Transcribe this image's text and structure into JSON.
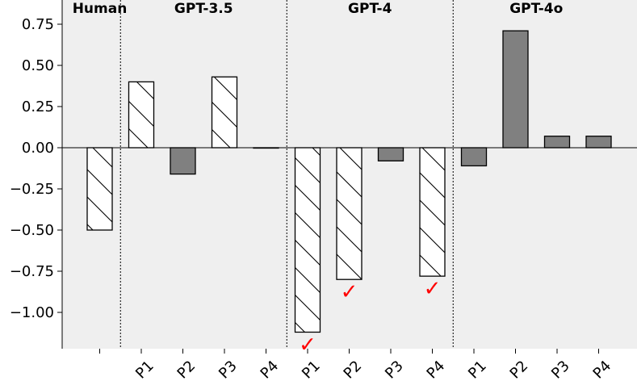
{
  "chart_data": {
    "type": "bar",
    "title": "",
    "xlabel": "",
    "ylabel": "",
    "ylim": [
      -1.2,
      0.8
    ],
    "yticks": [
      0.75,
      0.5,
      0.25,
      0.0,
      -0.25,
      -0.5,
      -0.75,
      -1.0
    ],
    "ytick_labels": [
      "0.75",
      "0.50",
      "0.25",
      "0.00",
      "−0.25",
      "−0.50",
      "−0.75",
      "−1.00"
    ],
    "grid": false,
    "background": "#efefef",
    "groups": [
      {
        "name": "Human",
        "bars": [
          {
            "label": "",
            "value": -0.5,
            "style": "hatched"
          }
        ]
      },
      {
        "name": "GPT-3.5",
        "bars": [
          {
            "label": "P1",
            "value": 0.4,
            "style": "hatched"
          },
          {
            "label": "P2",
            "value": -0.16,
            "style": "solid"
          },
          {
            "label": "P3",
            "value": 0.43,
            "style": "hatched"
          },
          {
            "label": "P4",
            "value": 0.0,
            "style": "hatched"
          }
        ]
      },
      {
        "name": "GPT-4",
        "bars": [
          {
            "label": "P1",
            "value": -1.12,
            "style": "hatched",
            "check": true
          },
          {
            "label": "P2",
            "value": -0.8,
            "style": "hatched",
            "check": true
          },
          {
            "label": "P3",
            "value": -0.08,
            "style": "solid"
          },
          {
            "label": "P4",
            "value": -0.78,
            "style": "hatched",
            "check": true
          }
        ]
      },
      {
        "name": "GPT-4o",
        "bars": [
          {
            "label": "P1",
            "value": -0.11,
            "style": "solid"
          },
          {
            "label": "P2",
            "value": 0.71,
            "style": "solid"
          },
          {
            "label": "P3",
            "value": 0.07,
            "style": "solid"
          },
          {
            "label": "P4",
            "value": 0.07,
            "style": "solid"
          }
        ]
      }
    ],
    "colors": {
      "solid_fill": "#808080",
      "hatched_fill": "#ffffff",
      "edge": "#000000",
      "check": "#ff0000"
    },
    "check_glyph": "✓"
  }
}
